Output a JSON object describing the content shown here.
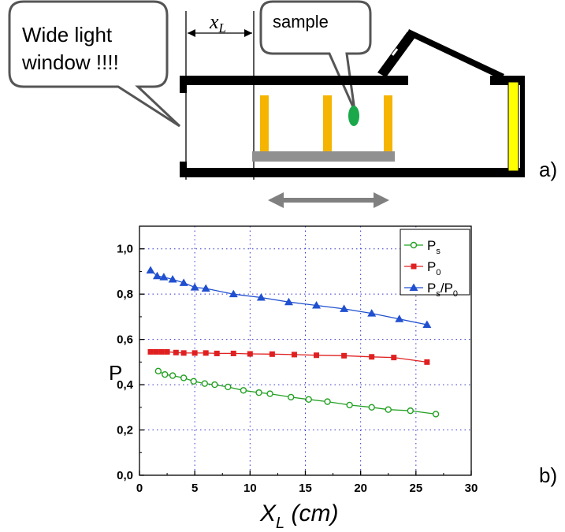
{
  "diagram": {
    "callout_left": {
      "line1": "Wide light",
      "line2": "window !!!!"
    },
    "callout_sample": "sample",
    "xl_symbol": "x",
    "xl_subscript": "L",
    "panel_a_label": "a)",
    "colors": {
      "frame": "#000000",
      "support": "#f5b400",
      "base": "#909090",
      "sample": "#1aa84a",
      "end_window": "#ffff00",
      "arrow": "#808080"
    }
  },
  "chart_data": {
    "type": "line",
    "panel_label": "b)",
    "xlabel": {
      "main": "X",
      "sub": "L",
      "rest": " (cm)"
    },
    "ylabel": "P",
    "xlim": [
      0,
      30
    ],
    "ylim": [
      0,
      1.1
    ],
    "xticks": [
      "0",
      "5",
      "10",
      "15",
      "20",
      "25",
      "30"
    ],
    "yticks": [
      "0,0",
      "0,2",
      "0,4",
      "0,6",
      "0,8",
      "1,0"
    ],
    "grid": true,
    "legend_position": "top-right",
    "series": [
      {
        "legend": {
          "main": "P",
          "sub": "s",
          "rest": ""
        },
        "color": "#22a022",
        "marker": "circle-open",
        "x": [
          1.7,
          2.3,
          3.0,
          4.0,
          4.9,
          5.9,
          6.8,
          8.0,
          9.4,
          10.8,
          11.8,
          13.7,
          15.3,
          17.0,
          19.0,
          21.0,
          22.5,
          24.5,
          26.8
        ],
        "y": [
          0.46,
          0.445,
          0.44,
          0.43,
          0.415,
          0.405,
          0.4,
          0.39,
          0.375,
          0.365,
          0.36,
          0.345,
          0.335,
          0.325,
          0.31,
          0.3,
          0.29,
          0.285,
          0.27
        ]
      },
      {
        "legend": {
          "main": "P",
          "sub": "0",
          "rest": ""
        },
        "color": "#e02020",
        "marker": "square",
        "x": [
          1.0,
          1.5,
          2.0,
          2.5,
          3.3,
          4.0,
          5.0,
          6.0,
          7.0,
          8.5,
          10.0,
          12.0,
          14.0,
          16.0,
          18.5,
          21.0,
          23.0,
          26.0
        ],
        "y": [
          0.545,
          0.545,
          0.545,
          0.545,
          0.542,
          0.54,
          0.54,
          0.54,
          0.538,
          0.538,
          0.536,
          0.535,
          0.533,
          0.53,
          0.528,
          0.523,
          0.52,
          0.5
        ]
      },
      {
        "legend": {
          "main": "P",
          "sub": "s",
          "rest": "/P",
          "sub2": "0"
        },
        "color": "#2050d0",
        "marker": "triangle",
        "x": [
          1.0,
          1.6,
          2.2,
          3.0,
          4.0,
          5.0,
          6.0,
          8.5,
          11.0,
          13.5,
          16.0,
          18.5,
          21.0,
          23.5,
          26.0
        ],
        "y": [
          0.905,
          0.88,
          0.875,
          0.865,
          0.85,
          0.83,
          0.825,
          0.8,
          0.785,
          0.765,
          0.75,
          0.735,
          0.715,
          0.69,
          0.665
        ]
      }
    ]
  }
}
